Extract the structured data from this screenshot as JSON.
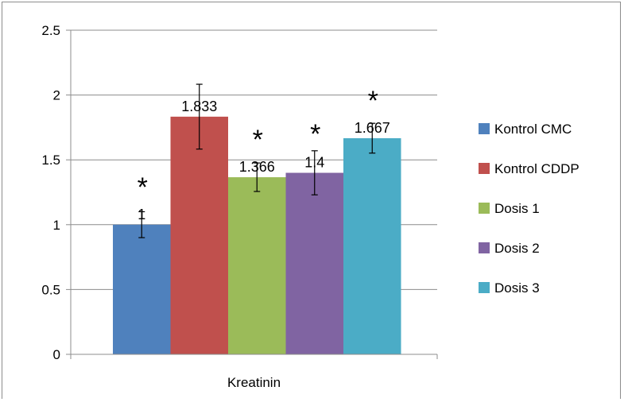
{
  "chart_data": {
    "type": "bar",
    "categories": [
      "Kreatinin"
    ],
    "series": [
      {
        "name": "Kontrol CMC",
        "value": 1,
        "label": "1",
        "error": 0.1,
        "color": "#4f81bd",
        "significant": true
      },
      {
        "name": "Kontrol CDDP",
        "value": 1.833,
        "label": "1.833",
        "error": 0.25,
        "color": "#c0504d",
        "significant": false
      },
      {
        "name": "Dosis 1",
        "value": 1.366,
        "label": "1.366",
        "error": 0.11,
        "color": "#9bbb59",
        "significant": true
      },
      {
        "name": "Dosis 2",
        "value": 1.4,
        "label": "1.4",
        "error": 0.17,
        "color": "#8064a2",
        "significant": true
      },
      {
        "name": "Dosis 3",
        "value": 1.667,
        "label": "1.667",
        "error": 0.115,
        "color": "#4bacc6",
        "significant": true
      }
    ],
    "significance_marker": "*",
    "ylim": [
      0,
      2.5
    ],
    "yticks": [
      "0",
      "0.5",
      "1",
      "1.5",
      "2",
      "2.5"
    ],
    "ytick_values": [
      0,
      0.5,
      1,
      1.5,
      2,
      2.5
    ],
    "grid": true,
    "legend_position": "right",
    "title": "",
    "xlabel": "",
    "ylabel": ""
  }
}
